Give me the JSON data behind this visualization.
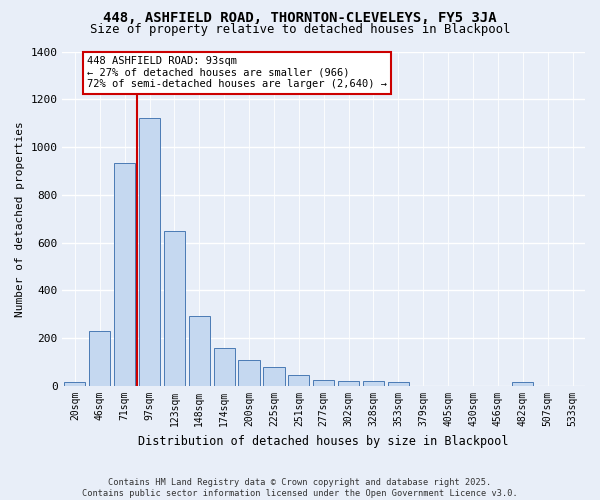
{
  "title1": "448, ASHFIELD ROAD, THORNTON-CLEVELEYS, FY5 3JA",
  "title2": "Size of property relative to detached houses in Blackpool",
  "xlabel": "Distribution of detached houses by size in Blackpool",
  "ylabel": "Number of detached properties",
  "bar_color": "#c5d8f0",
  "bar_edge_color": "#4a7ab5",
  "vline_color": "#cc0000",
  "categories": [
    "20sqm",
    "46sqm",
    "71sqm",
    "97sqm",
    "123sqm",
    "148sqm",
    "174sqm",
    "200sqm",
    "225sqm",
    "251sqm",
    "277sqm",
    "302sqm",
    "328sqm",
    "353sqm",
    "379sqm",
    "405sqm",
    "430sqm",
    "456sqm",
    "482sqm",
    "507sqm",
    "533sqm"
  ],
  "values": [
    15,
    230,
    935,
    1120,
    650,
    295,
    160,
    110,
    80,
    45,
    25,
    20,
    20,
    15,
    0,
    0,
    0,
    0,
    15,
    0,
    0
  ],
  "ylim": [
    0,
    1400
  ],
  "yticks": [
    0,
    200,
    400,
    600,
    800,
    1000,
    1200,
    1400
  ],
  "annotation_title": "448 ASHFIELD ROAD: 93sqm",
  "annotation_line1": "← 27% of detached houses are smaller (966)",
  "annotation_line2": "72% of semi-detached houses are larger (2,640) →",
  "footer1": "Contains HM Land Registry data © Crown copyright and database right 2025.",
  "footer2": "Contains public sector information licensed under the Open Government Licence v3.0.",
  "bg_color": "#e8eef8",
  "vline_x": 2.5
}
